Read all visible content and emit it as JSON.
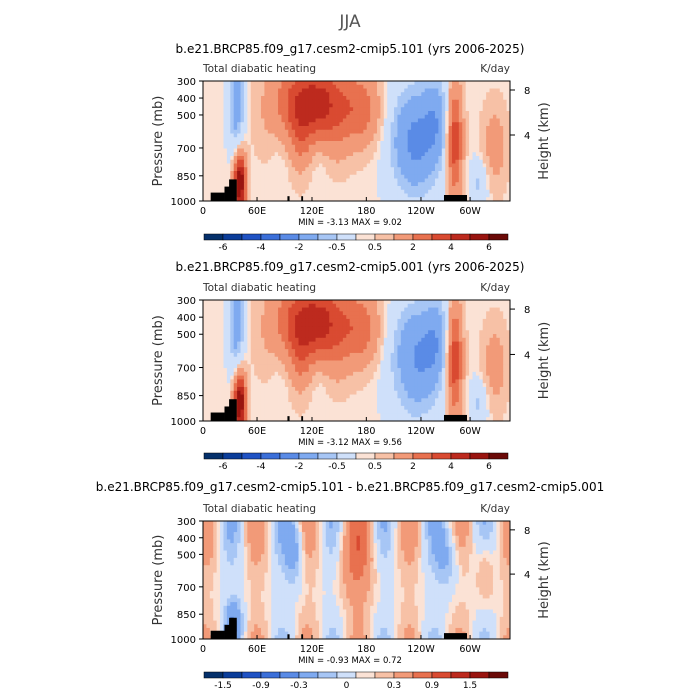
{
  "page_title": "JJA",
  "chart_data": [
    {
      "type": "heatmap",
      "title": "b.e21.BRCP85.f09_g17.cesm2-cmip5.101 (yrs 2006-2025)",
      "left_label": "Total diabatic heating",
      "right_label": "K/day",
      "ylabel": "Pressure (mb)",
      "y2label": "Height (km)",
      "x_ticks": [
        "0",
        "60E",
        "120E",
        "180",
        "120W",
        "60W"
      ],
      "y_ticks": [
        "300",
        "400",
        "500",
        "700",
        "850",
        "1000"
      ],
      "y2_ticks": [
        "8",
        "4"
      ],
      "stats": "MIN =   -3.13   MAX =    9.02",
      "colorbar_levels": [
        -6,
        -5,
        -4,
        -3,
        -2,
        -1,
        -0.5,
        -0.25,
        0.25,
        0.5,
        1,
        2,
        3,
        4,
        5,
        6
      ],
      "colorbar_labels": [
        "-6",
        "-4",
        "-2",
        "-0.5",
        "0.5",
        "2",
        "4",
        "6"
      ]
    },
    {
      "type": "heatmap",
      "title": "b.e21.BRCP85.f09_g17.cesm2-cmip5.001 (yrs 2006-2025)",
      "left_label": "Total diabatic heating",
      "right_label": "K/day",
      "ylabel": "Pressure (mb)",
      "y2label": "Height (km)",
      "x_ticks": [
        "0",
        "60E",
        "120E",
        "180",
        "120W",
        "60W"
      ],
      "y_ticks": [
        "300",
        "400",
        "500",
        "700",
        "850",
        "1000"
      ],
      "y2_ticks": [
        "8",
        "4"
      ],
      "stats": "MIN =   -3.12   MAX =    9.56",
      "colorbar_levels": [
        -6,
        -5,
        -4,
        -3,
        -2,
        -1,
        -0.5,
        -0.25,
        0.25,
        0.5,
        1,
        2,
        3,
        4,
        5,
        6
      ],
      "colorbar_labels": [
        "-6",
        "-4",
        "-2",
        "-0.5",
        "0.5",
        "2",
        "4",
        "6"
      ]
    },
    {
      "type": "heatmap",
      "title": "b.e21.BRCP85.f09_g17.cesm2-cmip5.101 - b.e21.BRCP85.f09_g17.cesm2-cmip5.001",
      "left_label": "Total diabatic heating",
      "right_label": "K/day",
      "ylabel": "Pressure (mb)",
      "y2label": "Height (km)",
      "x_ticks": [
        "0",
        "60E",
        "120E",
        "180",
        "120W",
        "60W"
      ],
      "y_ticks": [
        "300",
        "400",
        "500",
        "700",
        "850",
        "1000"
      ],
      "y2_ticks": [
        "8",
        "4"
      ],
      "stats": "MIN =   -0.93   MAX =    0.72",
      "colorbar_levels": [
        -1.8,
        -1.5,
        -1.2,
        -0.9,
        -0.6,
        -0.3,
        -0.15,
        -0.05,
        0.05,
        0.15,
        0.3,
        0.6,
        0.9,
        1.2,
        1.5,
        1.8
      ],
      "colorbar_labels": [
        "-1.5",
        "-0.9",
        "-0.3",
        "0",
        "0.3",
        "0.9",
        "1.5"
      ]
    }
  ],
  "colors": {
    "colorbar": [
      "#05306b",
      "#0b3d9a",
      "#1f52c4",
      "#3b6fd9",
      "#5a8be6",
      "#7faaf0",
      "#a7c6f5",
      "#cfe0fa",
      "#fbe2d5",
      "#f7c1a6",
      "#f29a78",
      "#e8714f",
      "#d94a31",
      "#bd2a1e",
      "#99140f",
      "#6b0a08"
    ]
  }
}
